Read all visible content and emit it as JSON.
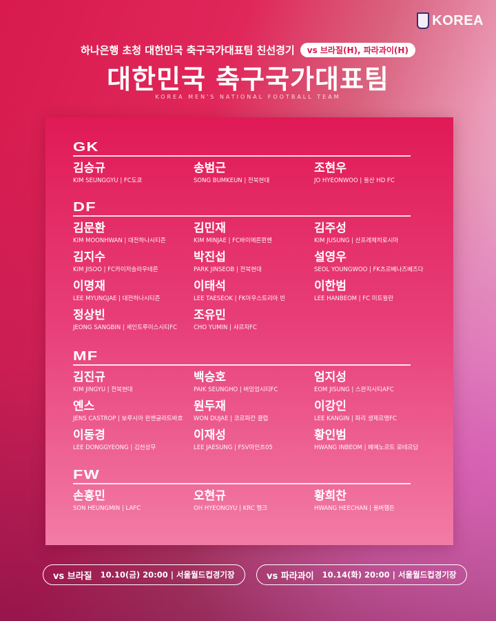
{
  "brand": "KOREA",
  "subtitle": "하나은행 초청 대한민국 축구국가대표팀 친선경기",
  "subtitle_pill": "vs 브라질(H), 파라과이(H)",
  "title": "대한민국 축구국가대표팀",
  "title_en": "KOREA MEN'S NATIONAL FOOTBALL TEAM",
  "sections": [
    {
      "label": "GK",
      "players": [
        {
          "name": "김승규",
          "info": "KIM SEUNGGYU | FC도쿄"
        },
        {
          "name": "송범근",
          "info": "SONG BUMKEUN | 전북현대"
        },
        {
          "name": "조현우",
          "info": "JO HYEONWOO | 울산 HD FC"
        }
      ]
    },
    {
      "label": "DF",
      "players": [
        {
          "name": "김문환",
          "info": "KIM MOONHWAN | 대전하나시티즌"
        },
        {
          "name": "김민재",
          "info": "KIM MINJAE | FC바이에른뮌헨"
        },
        {
          "name": "김주성",
          "info": "KIM JUSUNG | 산프레체히로시마"
        },
        {
          "name": "김지수",
          "info": "KIM JISOO | FC카이저슬라우테른"
        },
        {
          "name": "박진섭",
          "info": "PARK JINSEOB | 전북현대"
        },
        {
          "name": "설영우",
          "info": "SEOL YOUNGWOO | FK츠르베나즈베즈다"
        },
        {
          "name": "이명재",
          "info": "LEE MYUNGJAE | 대전하나시티즌"
        },
        {
          "name": "이태석",
          "info": "LEE TAESEOK | FK아우스트리아 빈"
        },
        {
          "name": "이한범",
          "info": "LEE HANBEOM | FC 미트윌란"
        },
        {
          "name": "정상빈",
          "info": "JEONG SANGBIN | 세인트루이스시티FC"
        },
        {
          "name": "조유민",
          "info": "CHO YUMIN | 샤르자FC"
        }
      ]
    },
    {
      "label": "MF",
      "players": [
        {
          "name": "김진규",
          "info": "KIM JINGYU | 전북현대"
        },
        {
          "name": "백승호",
          "info": "PAIK SEUNGHO | 버밍엄시티FC"
        },
        {
          "name": "엄지성",
          "info": "EOM JISUNG | 스완지시티AFC"
        },
        {
          "name": "옌스",
          "info": "JENS CASTROP | 보루시아 묀헨글라트바흐"
        },
        {
          "name": "원두재",
          "info": "WON DUJAE | 코르파칸 클럽"
        },
        {
          "name": "이강인",
          "info": "LEE KANGIN | 파리 생제르맹FC"
        },
        {
          "name": "이동경",
          "info": "LEE DONGGYEONG | 김천상무"
        },
        {
          "name": "이재성",
          "info": "LEE JAESUNG | FSV마인츠05"
        },
        {
          "name": "황인범",
          "info": "HWANG INBEOM | 페예노르트 로테르담"
        }
      ]
    },
    {
      "label": "FW",
      "players": [
        {
          "name": "손흥민",
          "info": "SON HEUNGMIN | LAFC"
        },
        {
          "name": "오현규",
          "info": "OH HYEONGYU | KRC 헹크"
        },
        {
          "name": "황희찬",
          "info": "HWANG HEECHAN | 울버햄튼"
        }
      ]
    }
  ],
  "matches": [
    {
      "opponent": "vs 브라질",
      "detail": "10.10(금) 20:00 | 서울월드컵경기장"
    },
    {
      "opponent": "vs 파라과이",
      "detail": "10.14(화) 20:00 | 서울월드컵경기장"
    }
  ]
}
